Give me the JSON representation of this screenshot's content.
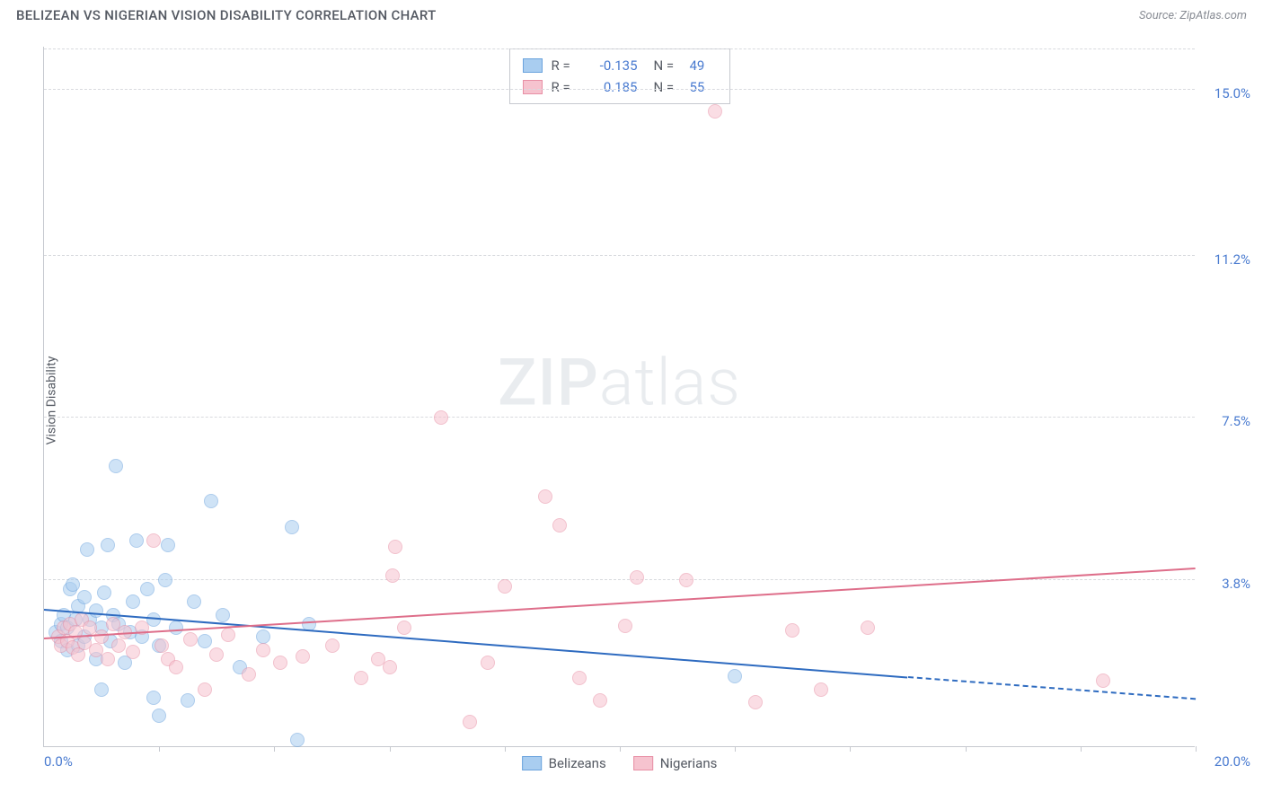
{
  "header": {
    "title": "BELIZEAN VS NIGERIAN VISION DISABILITY CORRELATION CHART",
    "source": "Source: ZipAtlas.com"
  },
  "chart": {
    "type": "scatter",
    "ylabel": "Vision Disability",
    "xlim": [
      0,
      20
    ],
    "ylim": [
      0,
      16
    ],
    "background_color": "#ffffff",
    "grid_color": "#d8dade",
    "axis_color": "#c6c9cf",
    "tick_label_color": "#4a7bd0",
    "yticks": [
      {
        "value": 3.8,
        "label": "3.8%"
      },
      {
        "value": 7.5,
        "label": "7.5%"
      },
      {
        "value": 11.2,
        "label": "11.2%"
      },
      {
        "value": 15.0,
        "label": "15.0%"
      }
    ],
    "xticks": [
      2,
      4,
      6,
      8,
      10,
      12,
      14,
      16,
      18,
      20
    ],
    "xaxis_left_label": "0.0%",
    "xaxis_right_label": "20.0%",
    "watermark": {
      "bold": "ZIP",
      "light": "atlas"
    },
    "series": [
      {
        "name": "Belizeans",
        "fill_color": "#a9cdf0",
        "stroke_color": "#6ba3dd",
        "line_color": "#2e6bc0",
        "marker_radius": 8,
        "fill_opacity": 0.55,
        "R_label": "R =",
        "R_value": "-0.135",
        "N_label": "N =",
        "N_value": "49",
        "regression": {
          "x1": 0,
          "y1": 3.1,
          "x2_solid": 15,
          "y2_solid": 1.55,
          "x2": 20,
          "y2": 1.05
        },
        "points": [
          [
            0.2,
            2.6
          ],
          [
            0.3,
            2.4
          ],
          [
            0.3,
            2.8
          ],
          [
            0.35,
            3.0
          ],
          [
            0.4,
            2.2
          ],
          [
            0.4,
            2.7
          ],
          [
            0.45,
            3.6
          ],
          [
            0.5,
            3.7
          ],
          [
            0.55,
            2.9
          ],
          [
            0.6,
            2.3
          ],
          [
            0.6,
            3.2
          ],
          [
            0.7,
            2.5
          ],
          [
            0.7,
            3.4
          ],
          [
            0.75,
            4.5
          ],
          [
            0.8,
            2.9
          ],
          [
            0.9,
            2.0
          ],
          [
            0.9,
            3.1
          ],
          [
            1.0,
            1.3
          ],
          [
            1.0,
            2.7
          ],
          [
            1.05,
            3.5
          ],
          [
            1.1,
            4.6
          ],
          [
            1.15,
            2.4
          ],
          [
            1.2,
            3.0
          ],
          [
            1.25,
            6.4
          ],
          [
            1.3,
            2.8
          ],
          [
            1.4,
            1.9
          ],
          [
            1.5,
            2.6
          ],
          [
            1.55,
            3.3
          ],
          [
            1.6,
            4.7
          ],
          [
            1.7,
            2.5
          ],
          [
            1.8,
            3.6
          ],
          [
            1.9,
            1.1
          ],
          [
            1.9,
            2.9
          ],
          [
            2.0,
            0.7
          ],
          [
            2.0,
            2.3
          ],
          [
            2.1,
            3.8
          ],
          [
            2.15,
            4.6
          ],
          [
            2.3,
            2.7
          ],
          [
            2.5,
            1.05
          ],
          [
            2.6,
            3.3
          ],
          [
            2.8,
            2.4
          ],
          [
            2.9,
            5.6
          ],
          [
            3.1,
            3.0
          ],
          [
            3.4,
            1.8
          ],
          [
            3.8,
            2.5
          ],
          [
            4.3,
            5.0
          ],
          [
            4.4,
            0.15
          ],
          [
            4.6,
            2.8
          ],
          [
            12.0,
            1.6
          ]
        ]
      },
      {
        "name": "Nigerians",
        "fill_color": "#f6c3cf",
        "stroke_color": "#e88fa5",
        "line_color": "#de6e8a",
        "marker_radius": 8,
        "fill_opacity": 0.55,
        "R_label": "R =",
        "R_value": "0.185",
        "N_label": "N =",
        "N_value": "55",
        "regression": {
          "x1": 0,
          "y1": 2.45,
          "x2_solid": 20,
          "y2_solid": 4.05,
          "x2": 20,
          "y2": 4.05
        },
        "points": [
          [
            0.25,
            2.5
          ],
          [
            0.3,
            2.3
          ],
          [
            0.35,
            2.7
          ],
          [
            0.4,
            2.4
          ],
          [
            0.45,
            2.8
          ],
          [
            0.5,
            2.25
          ],
          [
            0.55,
            2.6
          ],
          [
            0.6,
            2.1
          ],
          [
            0.65,
            2.9
          ],
          [
            0.7,
            2.35
          ],
          [
            0.8,
            2.7
          ],
          [
            0.9,
            2.2
          ],
          [
            1.0,
            2.5
          ],
          [
            1.1,
            2.0
          ],
          [
            1.2,
            2.8
          ],
          [
            1.3,
            2.3
          ],
          [
            1.4,
            2.6
          ],
          [
            1.55,
            2.15
          ],
          [
            1.7,
            2.7
          ],
          [
            1.9,
            4.7
          ],
          [
            2.05,
            2.3
          ],
          [
            2.15,
            2.0
          ],
          [
            2.3,
            1.8
          ],
          [
            2.55,
            2.45
          ],
          [
            2.8,
            1.3
          ],
          [
            3.0,
            2.1
          ],
          [
            3.2,
            2.55
          ],
          [
            3.55,
            1.65
          ],
          [
            3.8,
            2.2
          ],
          [
            4.1,
            1.9
          ],
          [
            4.5,
            2.05
          ],
          [
            5.0,
            2.3
          ],
          [
            5.5,
            1.55
          ],
          [
            5.8,
            2.0
          ],
          [
            6.0,
            1.8
          ],
          [
            6.05,
            3.9
          ],
          [
            6.1,
            4.55
          ],
          [
            6.25,
            2.7
          ],
          [
            6.9,
            7.5
          ],
          [
            7.4,
            0.55
          ],
          [
            7.7,
            1.9
          ],
          [
            8.0,
            3.65
          ],
          [
            8.7,
            5.7
          ],
          [
            8.95,
            5.05
          ],
          [
            9.3,
            1.55
          ],
          [
            9.65,
            1.05
          ],
          [
            10.1,
            2.75
          ],
          [
            10.3,
            3.85
          ],
          [
            11.15,
            3.8
          ],
          [
            11.65,
            14.5
          ],
          [
            12.35,
            1.0
          ],
          [
            13.0,
            2.65
          ],
          [
            13.5,
            1.3
          ],
          [
            14.3,
            2.7
          ],
          [
            18.4,
            1.5
          ]
        ]
      }
    ]
  },
  "bottom_legend": [
    {
      "name": "Belizeans"
    },
    {
      "name": "Nigerians"
    }
  ]
}
